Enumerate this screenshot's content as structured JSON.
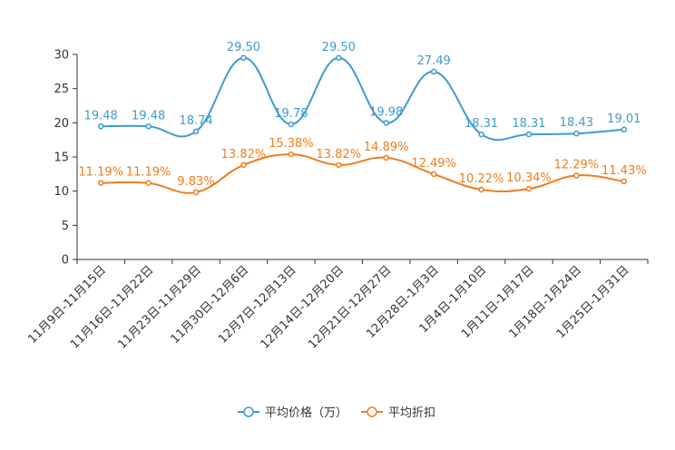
{
  "chart_data": {
    "type": "line",
    "categories": [
      "11月9日-11月15日",
      "11月16日-11月22日",
      "11月23日-11月29日",
      "11月30日-12月6日",
      "12月7日-12月13日",
      "12月14日-12月20日",
      "12月21日-12月27日",
      "12月28日-1月3日",
      "1月4日-1月10日",
      "1月11日-1月17日",
      "1月18日-1月24日",
      "1月25日-1月31日"
    ],
    "series": [
      {
        "name": "平均价格（万）",
        "color": "#3d9bd0",
        "values": [
          19.48,
          19.48,
          18.74,
          29.5,
          19.78,
          29.5,
          19.98,
          27.49,
          18.31,
          18.31,
          18.43,
          19.01
        ],
        "labels": [
          "19.48",
          "19.48",
          "18.74",
          "29.50",
          "19.78",
          "29.50",
          "19.98",
          "27.49",
          "18.31",
          "18.31",
          "18.43",
          "19.01"
        ]
      },
      {
        "name": "平均折扣",
        "color": "#f07c1c",
        "values": [
          11.19,
          11.19,
          9.83,
          13.82,
          15.38,
          13.82,
          14.89,
          12.49,
          10.22,
          10.34,
          12.29,
          11.43
        ],
        "labels": [
          "11.19%",
          "11.19%",
          "9.83%",
          "13.82%",
          "15.38%",
          "13.82%",
          "14.89%",
          "12.49%",
          "10.22%",
          "10.34%",
          "12.29%",
          "11.43%"
        ]
      }
    ],
    "yticks": [
      "0",
      "5",
      "10",
      "15",
      "20",
      "25",
      "30"
    ],
    "ylim": [
      0,
      30
    ],
    "title": "",
    "xlabel": "",
    "ylabel": "",
    "legend_position": "bottom-center"
  }
}
